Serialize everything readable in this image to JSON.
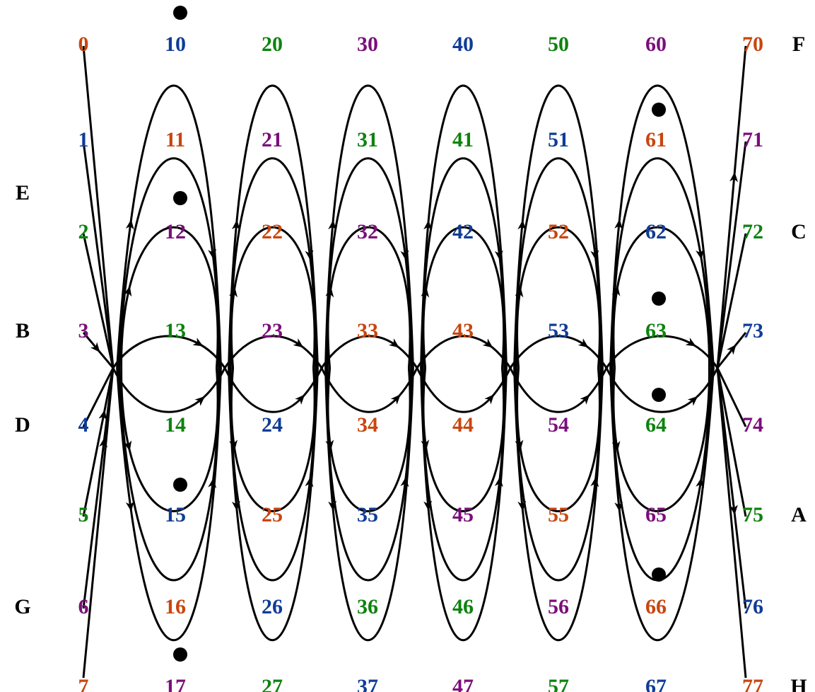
{
  "colors": {
    "orange": "#c8460f",
    "blue": "#103c96",
    "green": "#0e820e",
    "purple": "#7a0f7a",
    "line": "#000000"
  },
  "columns": [
    {
      "labels": [
        "0",
        "1",
        "2",
        "3",
        "4",
        "5",
        "6",
        "7"
      ],
      "colors": [
        "orange",
        "blue",
        "green",
        "purple",
        "blue",
        "green",
        "purple",
        "orange"
      ]
    },
    {
      "labels": [
        "10",
        "11",
        "12",
        "13",
        "14",
        "15",
        "16",
        "17"
      ],
      "colors": [
        "blue",
        "orange",
        "purple",
        "green",
        "green",
        "blue",
        "orange",
        "purple"
      ]
    },
    {
      "labels": [
        "20",
        "21",
        "22",
        "23",
        "24",
        "25",
        "26",
        "27"
      ],
      "colors": [
        "green",
        "purple",
        "orange",
        "purple",
        "blue",
        "orange",
        "blue",
        "green"
      ]
    },
    {
      "labels": [
        "30",
        "31",
        "32",
        "33",
        "34",
        "35",
        "36",
        "37"
      ],
      "colors": [
        "purple",
        "green",
        "purple",
        "orange",
        "orange",
        "blue",
        "green",
        "blue"
      ]
    },
    {
      "labels": [
        "40",
        "41",
        "42",
        "43",
        "44",
        "45",
        "46",
        "47"
      ],
      "colors": [
        "blue",
        "green",
        "blue",
        "orange",
        "orange",
        "purple",
        "green",
        "purple"
      ]
    },
    {
      "labels": [
        "50",
        "51",
        "52",
        "53",
        "54",
        "55",
        "56",
        "57"
      ],
      "colors": [
        "green",
        "blue",
        "orange",
        "blue",
        "purple",
        "orange",
        "purple",
        "green"
      ]
    },
    {
      "labels": [
        "60",
        "61",
        "62",
        "63",
        "64",
        "65",
        "66",
        "67"
      ],
      "colors": [
        "purple",
        "orange",
        "blue",
        "green",
        "green",
        "purple",
        "orange",
        "blue"
      ]
    },
    {
      "labels": [
        "70",
        "71",
        "72",
        "73",
        "74",
        "75",
        "76",
        "77"
      ],
      "colors": [
        "orange",
        "purple",
        "green",
        "blue",
        "purple",
        "green",
        "blue",
        "orange"
      ]
    }
  ],
  "side_labels": {
    "left": [
      {
        "text": "E",
        "row": 2
      },
      {
        "text": "B",
        "row": 3
      },
      {
        "text": "D",
        "row": 4
      },
      {
        "text": "G",
        "row": 6
      }
    ],
    "right": [
      {
        "text": "F",
        "row": 0
      },
      {
        "text": "C",
        "row": 2
      },
      {
        "text": "A",
        "row": 5
      },
      {
        "text": "H",
        "row": 7
      }
    ]
  }
}
